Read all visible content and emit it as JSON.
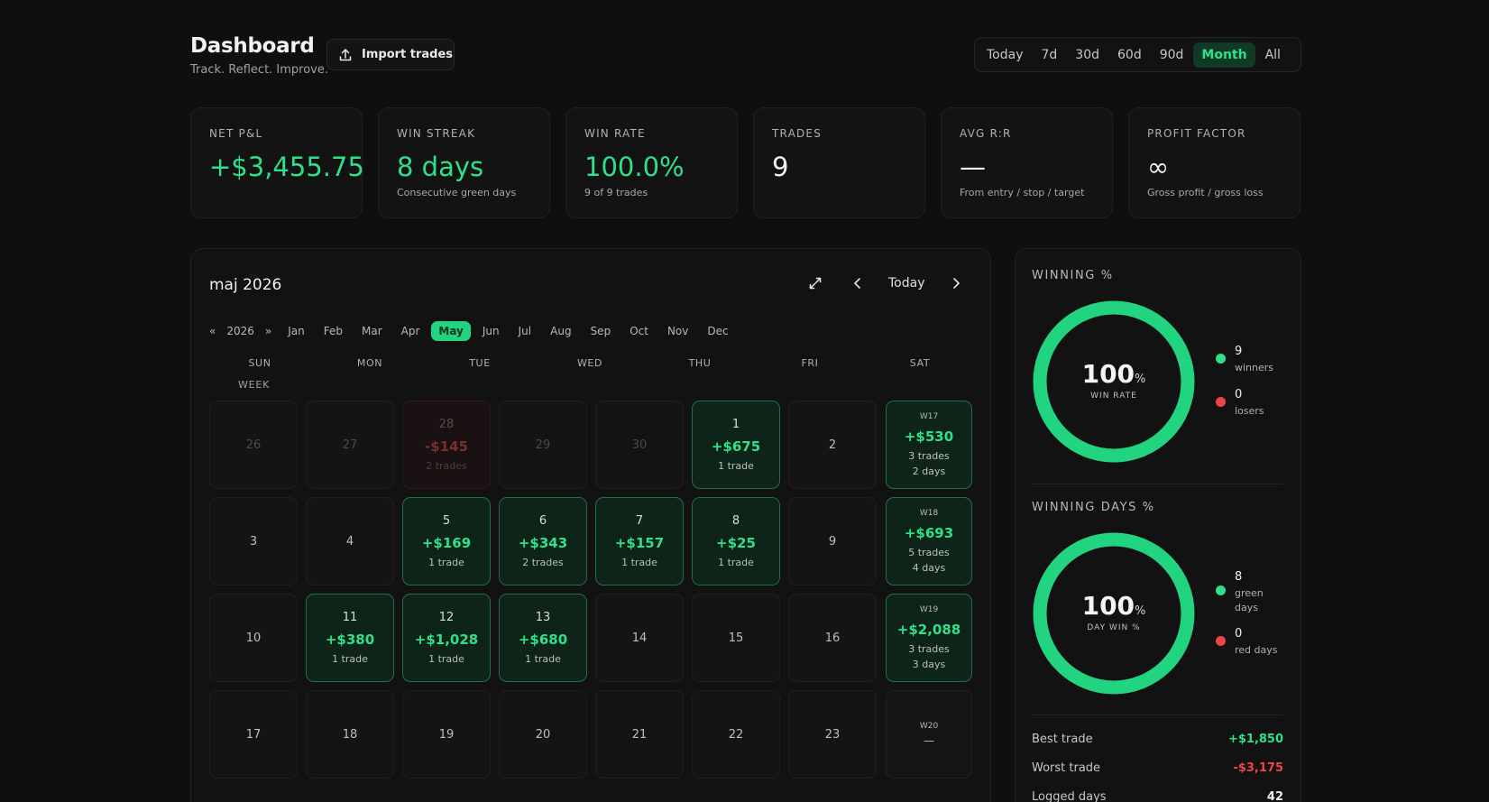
{
  "header": {
    "title": "Dashboard",
    "subtitle": "Track. Reflect. Improve.",
    "import_label": "Import trades",
    "ranges": [
      "Today",
      "7d",
      "30d",
      "60d",
      "90d",
      "Month",
      "All"
    ],
    "active_range": "Month"
  },
  "stats": [
    {
      "label": "NET P&L",
      "value": "+$3,455.75",
      "sub": ""
    },
    {
      "label": "WIN STREAK",
      "value": "8 days",
      "sub": "Consecutive green days"
    },
    {
      "label": "WIN RATE",
      "value": "100.0%",
      "sub": "9 of 9 trades"
    },
    {
      "label": "TRADES",
      "value": "9",
      "sub": ""
    },
    {
      "label": "AVG R:R",
      "value": "—",
      "sub": "From entry / stop / target"
    },
    {
      "label": "PROFIT FACTOR",
      "value": "∞",
      "sub": "Gross profit / gross loss"
    }
  ],
  "calendar": {
    "month_title": "maj 2026",
    "today_label": "Today",
    "year": "2026",
    "prev_year": "«",
    "next_year": "»",
    "months": [
      "Jan",
      "Feb",
      "Mar",
      "Apr",
      "May",
      "Jun",
      "Jul",
      "Aug",
      "Sep",
      "Oct",
      "Nov",
      "Dec"
    ],
    "active_month": "May",
    "weekdays": [
      "SUN",
      "MON",
      "TUE",
      "WED",
      "THU",
      "FRI",
      "SAT"
    ],
    "week_label": "WEEK",
    "rows": [
      {
        "days": [
          {
            "n": "26",
            "state": "dim"
          },
          {
            "n": "27",
            "state": "dim"
          },
          {
            "n": "28",
            "state": "loss",
            "pnl": "-$145",
            "trades": "2 trades"
          },
          {
            "n": "29",
            "state": "dim"
          },
          {
            "n": "30",
            "state": "dim"
          },
          {
            "n": "1",
            "state": "win",
            "pnl": "+$675",
            "trades": "1 trade"
          },
          {
            "n": "2",
            "state": "normal"
          }
        ],
        "week": {
          "label": "W17",
          "pnl": "+$530",
          "trades": "3 trades",
          "days": "2 days"
        }
      },
      {
        "days": [
          {
            "n": "3",
            "state": "normal"
          },
          {
            "n": "4",
            "state": "normal"
          },
          {
            "n": "5",
            "state": "win",
            "pnl": "+$169",
            "trades": "1 trade"
          },
          {
            "n": "6",
            "state": "win",
            "pnl": "+$343",
            "trades": "2 trades"
          },
          {
            "n": "7",
            "state": "win",
            "pnl": "+$157",
            "trades": "1 trade"
          },
          {
            "n": "8",
            "state": "win",
            "pnl": "+$25",
            "trades": "1 trade"
          },
          {
            "n": "9",
            "state": "normal"
          }
        ],
        "week": {
          "label": "W18",
          "pnl": "+$693",
          "trades": "5 trades",
          "days": "4 days"
        }
      },
      {
        "days": [
          {
            "n": "10",
            "state": "normal"
          },
          {
            "n": "11",
            "state": "win",
            "pnl": "+$380",
            "trades": "1 trade"
          },
          {
            "n": "12",
            "state": "win",
            "pnl": "+$1,028",
            "trades": "1 trade"
          },
          {
            "n": "13",
            "state": "win",
            "pnl": "+$680",
            "trades": "1 trade"
          },
          {
            "n": "14",
            "state": "normal"
          },
          {
            "n": "15",
            "state": "normal"
          },
          {
            "n": "16",
            "state": "normal"
          }
        ],
        "week": {
          "label": "W19",
          "pnl": "+$2,088",
          "trades": "3 trades",
          "days": "3 days"
        }
      },
      {
        "days": [
          {
            "n": "17",
            "state": "normal"
          },
          {
            "n": "18",
            "state": "normal"
          },
          {
            "n": "19",
            "state": "normal"
          },
          {
            "n": "20",
            "state": "normal"
          },
          {
            "n": "21",
            "state": "normal"
          },
          {
            "n": "22",
            "state": "normal"
          },
          {
            "n": "23",
            "state": "normal"
          }
        ],
        "week": {
          "label": "W20",
          "pnl": "",
          "trades": "",
          "days": "",
          "empty_text": "—"
        }
      }
    ]
  },
  "winning": {
    "label": "WINNING %",
    "value": "100",
    "unit": "%",
    "caption": "WIN RATE",
    "legend": [
      {
        "num": "9",
        "text": "winners",
        "color": "#2fe08a"
      },
      {
        "num": "0",
        "text": "losers",
        "color": "#ef4444"
      }
    ],
    "fraction": 1.0
  },
  "winning_days": {
    "label": "WINNING DAYS %",
    "value": "100",
    "unit": "%",
    "caption": "DAY WIN %",
    "legend": [
      {
        "num": "8",
        "text1": "green",
        "text2": "days",
        "color": "#2fe08a"
      },
      {
        "num": "0",
        "text1": "red days",
        "text2": "",
        "color": "#ef4444"
      }
    ],
    "fraction": 1.0
  },
  "summary": [
    {
      "label": "Best trade",
      "value": "+$1,850",
      "color": "#2fe08a"
    },
    {
      "label": "Worst trade",
      "value": "-$3,175",
      "color": "#ef4444"
    },
    {
      "label": "Logged days",
      "value": "42",
      "color": "#f0f0f0"
    }
  ],
  "colors": {
    "accent": "#2fe08a",
    "loss": "#ef4444",
    "bg": "#0f0f0f"
  }
}
